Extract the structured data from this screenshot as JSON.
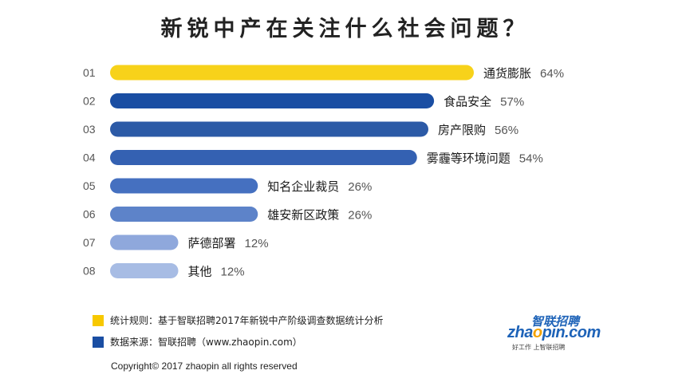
{
  "title": "新锐中产在关注什么社会问题？",
  "chart_data": {
    "type": "bar",
    "orientation": "horizontal",
    "ranks": [
      "01",
      "02",
      "03",
      "04",
      "05",
      "06",
      "07",
      "08"
    ],
    "categories": [
      "通货膨胀",
      "食品安全",
      "房产限购",
      "雾霾等环境问题",
      "知名企业裁员",
      "雄安新区政策",
      "萨德部署",
      "其他"
    ],
    "values": [
      64,
      57,
      56,
      54,
      26,
      26,
      12,
      12
    ],
    "value_labels": [
      "64%",
      "57%",
      "56%",
      "54%",
      "26%",
      "26%",
      "12%",
      "12%"
    ],
    "unit": "%",
    "bar_colors": [
      "#f7d21a",
      "#1a4ea3",
      "#2c5aa6",
      "#3461b2",
      "#4570c0",
      "#5d83c9",
      "#8fa8dc",
      "#a7bce4"
    ],
    "xlim": [
      0,
      64
    ],
    "grid": false,
    "legend_position": "bottom-left"
  },
  "legend": {
    "items": [
      {
        "color": "#f7c800",
        "text": "统计规则：基于智联招聘2017年新锐中产阶级调查数据统计分析"
      },
      {
        "color": "#1a4ea3",
        "text": "数据来源：智联招聘（www.zhaopin.com）"
      }
    ]
  },
  "logo": {
    "cn": "智联招聘",
    "en_prefix": "zha",
    "en_o": "o",
    "en_suffix": "pin.com",
    "tagline": "好工作  上智联招聘"
  },
  "copyright": "Copyright© 2017 zhaopin all rights reserved"
}
